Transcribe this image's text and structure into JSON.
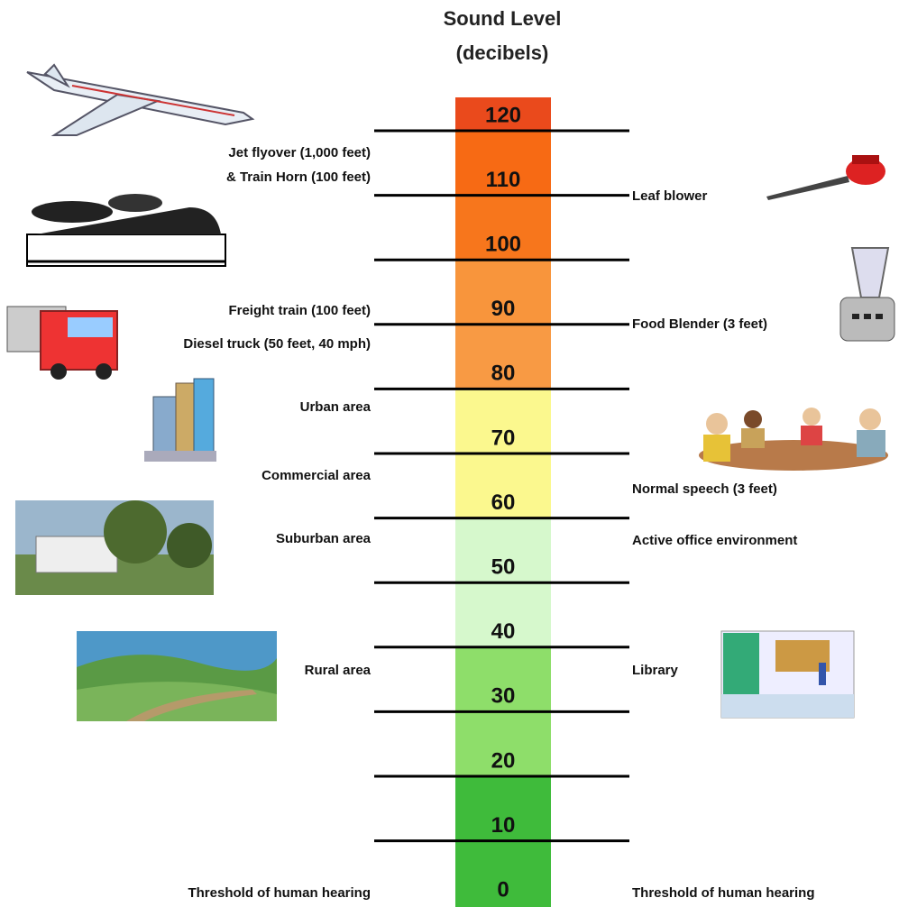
{
  "title": {
    "line1": "Sound Level",
    "line2": "(decibels)"
  },
  "scale": {
    "levels": [
      120,
      110,
      100,
      90,
      80,
      70,
      60,
      50,
      40,
      30,
      20,
      10,
      0
    ]
  },
  "left_labels": [
    "Jet flyover (1,000 feet)",
    "& Train Horn (100 feet)",
    "Freight train (100 feet)",
    "Diesel truck (50 feet, 40 mph)",
    "Urban area",
    "Commercial area",
    "Suburban area",
    "Rural area",
    "Threshold of human hearing"
  ],
  "right_labels": [
    "Leaf blower",
    "Food Blender (3 feet)",
    "Normal speech (3 feet)",
    "Active office environment",
    "Library",
    "Threshold of human hearing"
  ]
}
